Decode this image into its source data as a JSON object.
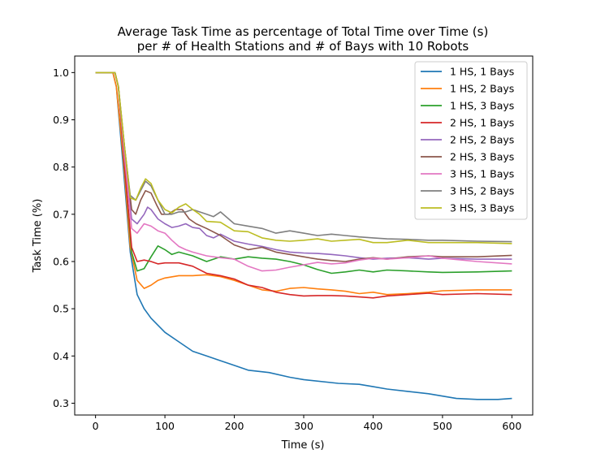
{
  "chart_data": {
    "type": "line",
    "title": [
      "Average Task Time as percentage of Total Time over Time (s)",
      "per # of Health Stations and # of Bays with 10 Robots"
    ],
    "xlabel": "Time (s)",
    "ylabel": "Task Time (%)",
    "xlim": [
      -30,
      630
    ],
    "ylim": [
      0.275,
      1.035
    ],
    "xticks": [
      0,
      100,
      200,
      300,
      400,
      500,
      600
    ],
    "yticks": [
      0.3,
      0.4,
      0.5,
      0.6,
      0.7,
      0.8,
      0.9,
      1.0
    ],
    "xtick_labels": [
      "0",
      "100",
      "200",
      "300",
      "400",
      "500",
      "600"
    ],
    "ytick_labels": [
      "0.3",
      "0.4",
      "0.5",
      "0.6",
      "0.7",
      "0.8",
      "0.9",
      "1.0"
    ],
    "legend_position": "upper-right",
    "grid": false,
    "series": [
      {
        "name": "1 HS, 1 Bays",
        "color": "#1f77b4",
        "points": [
          [
            0,
            1.0
          ],
          [
            25,
            1.0
          ],
          [
            30,
            0.97
          ],
          [
            40,
            0.8
          ],
          [
            50,
            0.62
          ],
          [
            60,
            0.53
          ],
          [
            70,
            0.5
          ],
          [
            80,
            0.48
          ],
          [
            100,
            0.45
          ],
          [
            120,
            0.43
          ],
          [
            140,
            0.41
          ],
          [
            160,
            0.4
          ],
          [
            180,
            0.39
          ],
          [
            200,
            0.38
          ],
          [
            220,
            0.37
          ],
          [
            250,
            0.365
          ],
          [
            280,
            0.355
          ],
          [
            300,
            0.35
          ],
          [
            350,
            0.342
          ],
          [
            380,
            0.34
          ],
          [
            400,
            0.335
          ],
          [
            420,
            0.33
          ],
          [
            450,
            0.325
          ],
          [
            480,
            0.32
          ],
          [
            500,
            0.315
          ],
          [
            520,
            0.31
          ],
          [
            550,
            0.308
          ],
          [
            580,
            0.308
          ],
          [
            600,
            0.31
          ]
        ]
      },
      {
        "name": "1 HS, 2 Bays",
        "color": "#ff7f0e",
        "points": [
          [
            0,
            1.0
          ],
          [
            25,
            1.0
          ],
          [
            30,
            0.97
          ],
          [
            40,
            0.82
          ],
          [
            50,
            0.63
          ],
          [
            60,
            0.56
          ],
          [
            70,
            0.543
          ],
          [
            80,
            0.55
          ],
          [
            90,
            0.56
          ],
          [
            100,
            0.565
          ],
          [
            120,
            0.57
          ],
          [
            140,
            0.57
          ],
          [
            160,
            0.572
          ],
          [
            180,
            0.568
          ],
          [
            200,
            0.56
          ],
          [
            220,
            0.55
          ],
          [
            240,
            0.54
          ],
          [
            260,
            0.537
          ],
          [
            280,
            0.543
          ],
          [
            300,
            0.545
          ],
          [
            320,
            0.542
          ],
          [
            340,
            0.54
          ],
          [
            360,
            0.537
          ],
          [
            380,
            0.532
          ],
          [
            400,
            0.535
          ],
          [
            420,
            0.53
          ],
          [
            450,
            0.532
          ],
          [
            480,
            0.535
          ],
          [
            500,
            0.538
          ],
          [
            550,
            0.54
          ],
          [
            600,
            0.54
          ]
        ]
      },
      {
        "name": "1 HS, 3 Bays",
        "color": "#2ca02c",
        "points": [
          [
            0,
            1.0
          ],
          [
            28,
            1.0
          ],
          [
            33,
            0.97
          ],
          [
            42,
            0.8
          ],
          [
            52,
            0.62
          ],
          [
            60,
            0.58
          ],
          [
            70,
            0.585
          ],
          [
            80,
            0.61
          ],
          [
            90,
            0.633
          ],
          [
            100,
            0.625
          ],
          [
            110,
            0.615
          ],
          [
            120,
            0.62
          ],
          [
            140,
            0.612
          ],
          [
            160,
            0.6
          ],
          [
            180,
            0.61
          ],
          [
            200,
            0.605
          ],
          [
            220,
            0.61
          ],
          [
            240,
            0.607
          ],
          [
            260,
            0.605
          ],
          [
            280,
            0.6
          ],
          [
            300,
            0.593
          ],
          [
            320,
            0.583
          ],
          [
            340,
            0.575
          ],
          [
            360,
            0.578
          ],
          [
            380,
            0.582
          ],
          [
            400,
            0.578
          ],
          [
            420,
            0.582
          ],
          [
            450,
            0.58
          ],
          [
            480,
            0.578
          ],
          [
            500,
            0.577
          ],
          [
            550,
            0.578
          ],
          [
            600,
            0.58
          ]
        ]
      },
      {
        "name": "2 HS, 1 Bays",
        "color": "#d62728",
        "points": [
          [
            0,
            1.0
          ],
          [
            28,
            1.0
          ],
          [
            33,
            0.97
          ],
          [
            42,
            0.8
          ],
          [
            52,
            0.63
          ],
          [
            60,
            0.6
          ],
          [
            70,
            0.603
          ],
          [
            80,
            0.6
          ],
          [
            90,
            0.595
          ],
          [
            100,
            0.597
          ],
          [
            120,
            0.597
          ],
          [
            140,
            0.59
          ],
          [
            160,
            0.575
          ],
          [
            180,
            0.57
          ],
          [
            200,
            0.563
          ],
          [
            220,
            0.55
          ],
          [
            240,
            0.545
          ],
          [
            260,
            0.535
          ],
          [
            280,
            0.53
          ],
          [
            300,
            0.527
          ],
          [
            320,
            0.528
          ],
          [
            340,
            0.528
          ],
          [
            360,
            0.527
          ],
          [
            380,
            0.525
          ],
          [
            400,
            0.523
          ],
          [
            420,
            0.527
          ],
          [
            450,
            0.53
          ],
          [
            480,
            0.533
          ],
          [
            500,
            0.53
          ],
          [
            550,
            0.532
          ],
          [
            600,
            0.53
          ]
        ]
      },
      {
        "name": "2 HS, 2 Bays",
        "color": "#9467bd",
        "points": [
          [
            0,
            1.0
          ],
          [
            28,
            1.0
          ],
          [
            33,
            0.97
          ],
          [
            42,
            0.82
          ],
          [
            52,
            0.69
          ],
          [
            60,
            0.68
          ],
          [
            70,
            0.7
          ],
          [
            75,
            0.715
          ],
          [
            80,
            0.71
          ],
          [
            90,
            0.69
          ],
          [
            100,
            0.68
          ],
          [
            110,
            0.672
          ],
          [
            120,
            0.675
          ],
          [
            130,
            0.68
          ],
          [
            140,
            0.672
          ],
          [
            150,
            0.67
          ],
          [
            160,
            0.655
          ],
          [
            170,
            0.65
          ],
          [
            180,
            0.658
          ],
          [
            200,
            0.643
          ],
          [
            220,
            0.637
          ],
          [
            240,
            0.632
          ],
          [
            260,
            0.625
          ],
          [
            280,
            0.62
          ],
          [
            300,
            0.618
          ],
          [
            320,
            0.617
          ],
          [
            340,
            0.615
          ],
          [
            360,
            0.612
          ],
          [
            380,
            0.608
          ],
          [
            400,
            0.605
          ],
          [
            420,
            0.607
          ],
          [
            450,
            0.608
          ],
          [
            480,
            0.605
          ],
          [
            500,
            0.607
          ],
          [
            550,
            0.605
          ],
          [
            600,
            0.605
          ]
        ]
      },
      {
        "name": "2 HS, 3 Bays",
        "color": "#8c564b",
        "points": [
          [
            0,
            1.0
          ],
          [
            28,
            1.0
          ],
          [
            33,
            0.97
          ],
          [
            42,
            0.84
          ],
          [
            52,
            0.71
          ],
          [
            58,
            0.7
          ],
          [
            65,
            0.73
          ],
          [
            72,
            0.75
          ],
          [
            80,
            0.745
          ],
          [
            88,
            0.72
          ],
          [
            95,
            0.7
          ],
          [
            105,
            0.7
          ],
          [
            115,
            0.71
          ],
          [
            125,
            0.71
          ],
          [
            135,
            0.69
          ],
          [
            145,
            0.68
          ],
          [
            160,
            0.67
          ],
          [
            180,
            0.655
          ],
          [
            200,
            0.635
          ],
          [
            220,
            0.625
          ],
          [
            240,
            0.63
          ],
          [
            260,
            0.62
          ],
          [
            280,
            0.615
          ],
          [
            300,
            0.61
          ],
          [
            320,
            0.605
          ],
          [
            340,
            0.602
          ],
          [
            360,
            0.6
          ],
          [
            380,
            0.605
          ],
          [
            400,
            0.608
          ],
          [
            420,
            0.605
          ],
          [
            450,
            0.61
          ],
          [
            480,
            0.612
          ],
          [
            500,
            0.61
          ],
          [
            550,
            0.61
          ],
          [
            600,
            0.613
          ]
        ]
      },
      {
        "name": "3 HS, 1 Bays",
        "color": "#e377c2",
        "points": [
          [
            0,
            1.0
          ],
          [
            28,
            1.0
          ],
          [
            33,
            0.97
          ],
          [
            42,
            0.82
          ],
          [
            52,
            0.67
          ],
          [
            60,
            0.66
          ],
          [
            70,
            0.68
          ],
          [
            80,
            0.675
          ],
          [
            90,
            0.665
          ],
          [
            100,
            0.66
          ],
          [
            110,
            0.645
          ],
          [
            120,
            0.632
          ],
          [
            130,
            0.625
          ],
          [
            140,
            0.62
          ],
          [
            160,
            0.612
          ],
          [
            180,
            0.608
          ],
          [
            200,
            0.605
          ],
          [
            220,
            0.59
          ],
          [
            240,
            0.58
          ],
          [
            260,
            0.582
          ],
          [
            280,
            0.588
          ],
          [
            300,
            0.593
          ],
          [
            320,
            0.598
          ],
          [
            340,
            0.595
          ],
          [
            360,
            0.597
          ],
          [
            380,
            0.603
          ],
          [
            400,
            0.607
          ],
          [
            420,
            0.605
          ],
          [
            450,
            0.608
          ],
          [
            480,
            0.612
          ],
          [
            500,
            0.607
          ],
          [
            550,
            0.6
          ],
          [
            600,
            0.595
          ]
        ]
      },
      {
        "name": "3 HS, 2 Bays",
        "color": "#7f7f7f",
        "points": [
          [
            0,
            1.0
          ],
          [
            28,
            1.0
          ],
          [
            33,
            0.97
          ],
          [
            42,
            0.84
          ],
          [
            50,
            0.74
          ],
          [
            58,
            0.73
          ],
          [
            65,
            0.75
          ],
          [
            72,
            0.77
          ],
          [
            80,
            0.76
          ],
          [
            90,
            0.73
          ],
          [
            100,
            0.7
          ],
          [
            110,
            0.7
          ],
          [
            120,
            0.705
          ],
          [
            130,
            0.705
          ],
          [
            140,
            0.71
          ],
          [
            150,
            0.705
          ],
          [
            160,
            0.7
          ],
          [
            170,
            0.695
          ],
          [
            180,
            0.705
          ],
          [
            200,
            0.68
          ],
          [
            220,
            0.675
          ],
          [
            240,
            0.67
          ],
          [
            260,
            0.66
          ],
          [
            280,
            0.665
          ],
          [
            300,
            0.66
          ],
          [
            320,
            0.655
          ],
          [
            340,
            0.658
          ],
          [
            360,
            0.655
          ],
          [
            380,
            0.652
          ],
          [
            400,
            0.65
          ],
          [
            420,
            0.648
          ],
          [
            450,
            0.647
          ],
          [
            480,
            0.645
          ],
          [
            500,
            0.645
          ],
          [
            550,
            0.643
          ],
          [
            600,
            0.642
          ]
        ]
      },
      {
        "name": "3 HS, 3 Bays",
        "color": "#bcbd22",
        "points": [
          [
            0,
            1.0
          ],
          [
            28,
            1.0
          ],
          [
            33,
            0.97
          ],
          [
            42,
            0.84
          ],
          [
            50,
            0.735
          ],
          [
            58,
            0.73
          ],
          [
            65,
            0.755
          ],
          [
            72,
            0.775
          ],
          [
            80,
            0.765
          ],
          [
            90,
            0.73
          ],
          [
            100,
            0.71
          ],
          [
            110,
            0.703
          ],
          [
            120,
            0.715
          ],
          [
            130,
            0.722
          ],
          [
            140,
            0.71
          ],
          [
            150,
            0.7
          ],
          [
            160,
            0.685
          ],
          [
            180,
            0.683
          ],
          [
            200,
            0.665
          ],
          [
            220,
            0.663
          ],
          [
            240,
            0.65
          ],
          [
            260,
            0.645
          ],
          [
            280,
            0.643
          ],
          [
            300,
            0.645
          ],
          [
            320,
            0.648
          ],
          [
            340,
            0.643
          ],
          [
            360,
            0.645
          ],
          [
            380,
            0.647
          ],
          [
            400,
            0.64
          ],
          [
            420,
            0.64
          ],
          [
            450,
            0.645
          ],
          [
            480,
            0.64
          ],
          [
            500,
            0.64
          ],
          [
            550,
            0.64
          ],
          [
            600,
            0.638
          ]
        ]
      }
    ]
  }
}
